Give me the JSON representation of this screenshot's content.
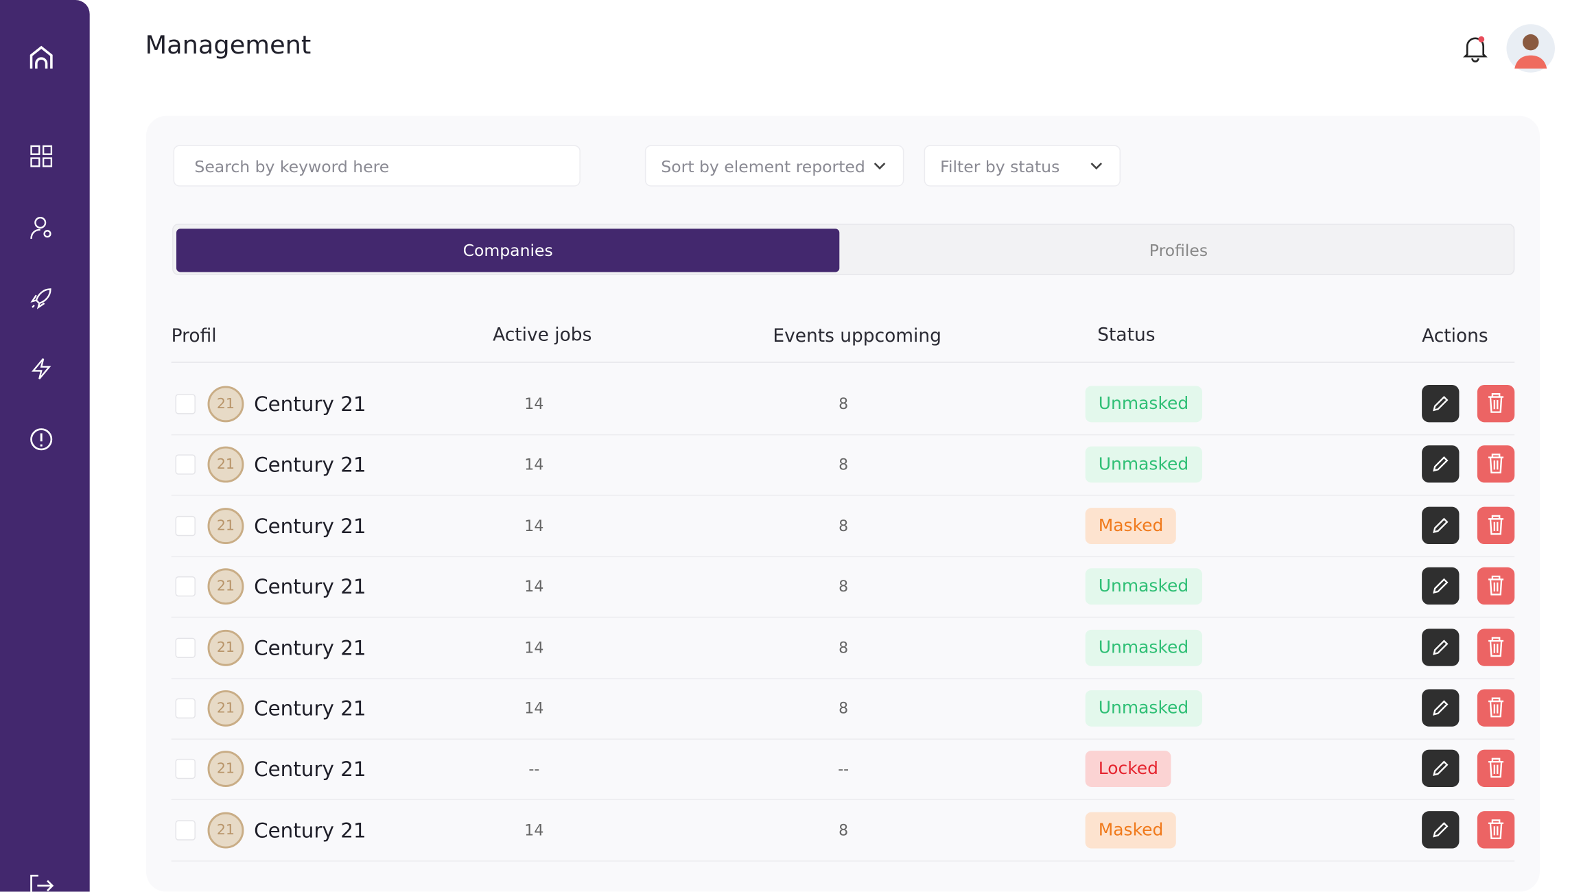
{
  "header": {
    "title": "Management"
  },
  "toolbar": {
    "search_placeholder": "Search by keyword here",
    "sort": "Sort by element reported",
    "filter": "Filter by status"
  },
  "tabs": [
    "Companies",
    "Profiles"
  ],
  "table": {
    "columns": [
      "Profil",
      "Active jobs",
      "Events uppcoming",
      "Status",
      "Actions"
    ],
    "rows": [
      {
        "logo": "21",
        "name": "Century 21",
        "active_jobs": 14,
        "events": 8,
        "status": "Unmasked"
      },
      {
        "logo": "21",
        "name": "Century 21",
        "active_jobs": 14,
        "events": 8,
        "status": "Unmasked"
      },
      {
        "logo": "21",
        "name": "Century 21",
        "active_jobs": 14,
        "events": 8,
        "status": "Masked"
      },
      {
        "logo": "21",
        "name": "Century 21",
        "active_jobs": 14,
        "events": 8,
        "status": "Unmasked"
      },
      {
        "logo": "21",
        "name": "Century 21",
        "active_jobs": 14,
        "events": 8,
        "status": "Unmasked"
      },
      {
        "logo": "21",
        "name": "Century 21",
        "active_jobs": 14,
        "events": 8,
        "status": "Unmasked"
      },
      {
        "logo": "21",
        "name": "Century 21",
        "active_jobs": "--",
        "events": "--",
        "status": "Locked"
      },
      {
        "logo": "21",
        "name": "Century 21",
        "active_jobs": 14,
        "events": 8,
        "status": "Masked"
      }
    ]
  }
}
